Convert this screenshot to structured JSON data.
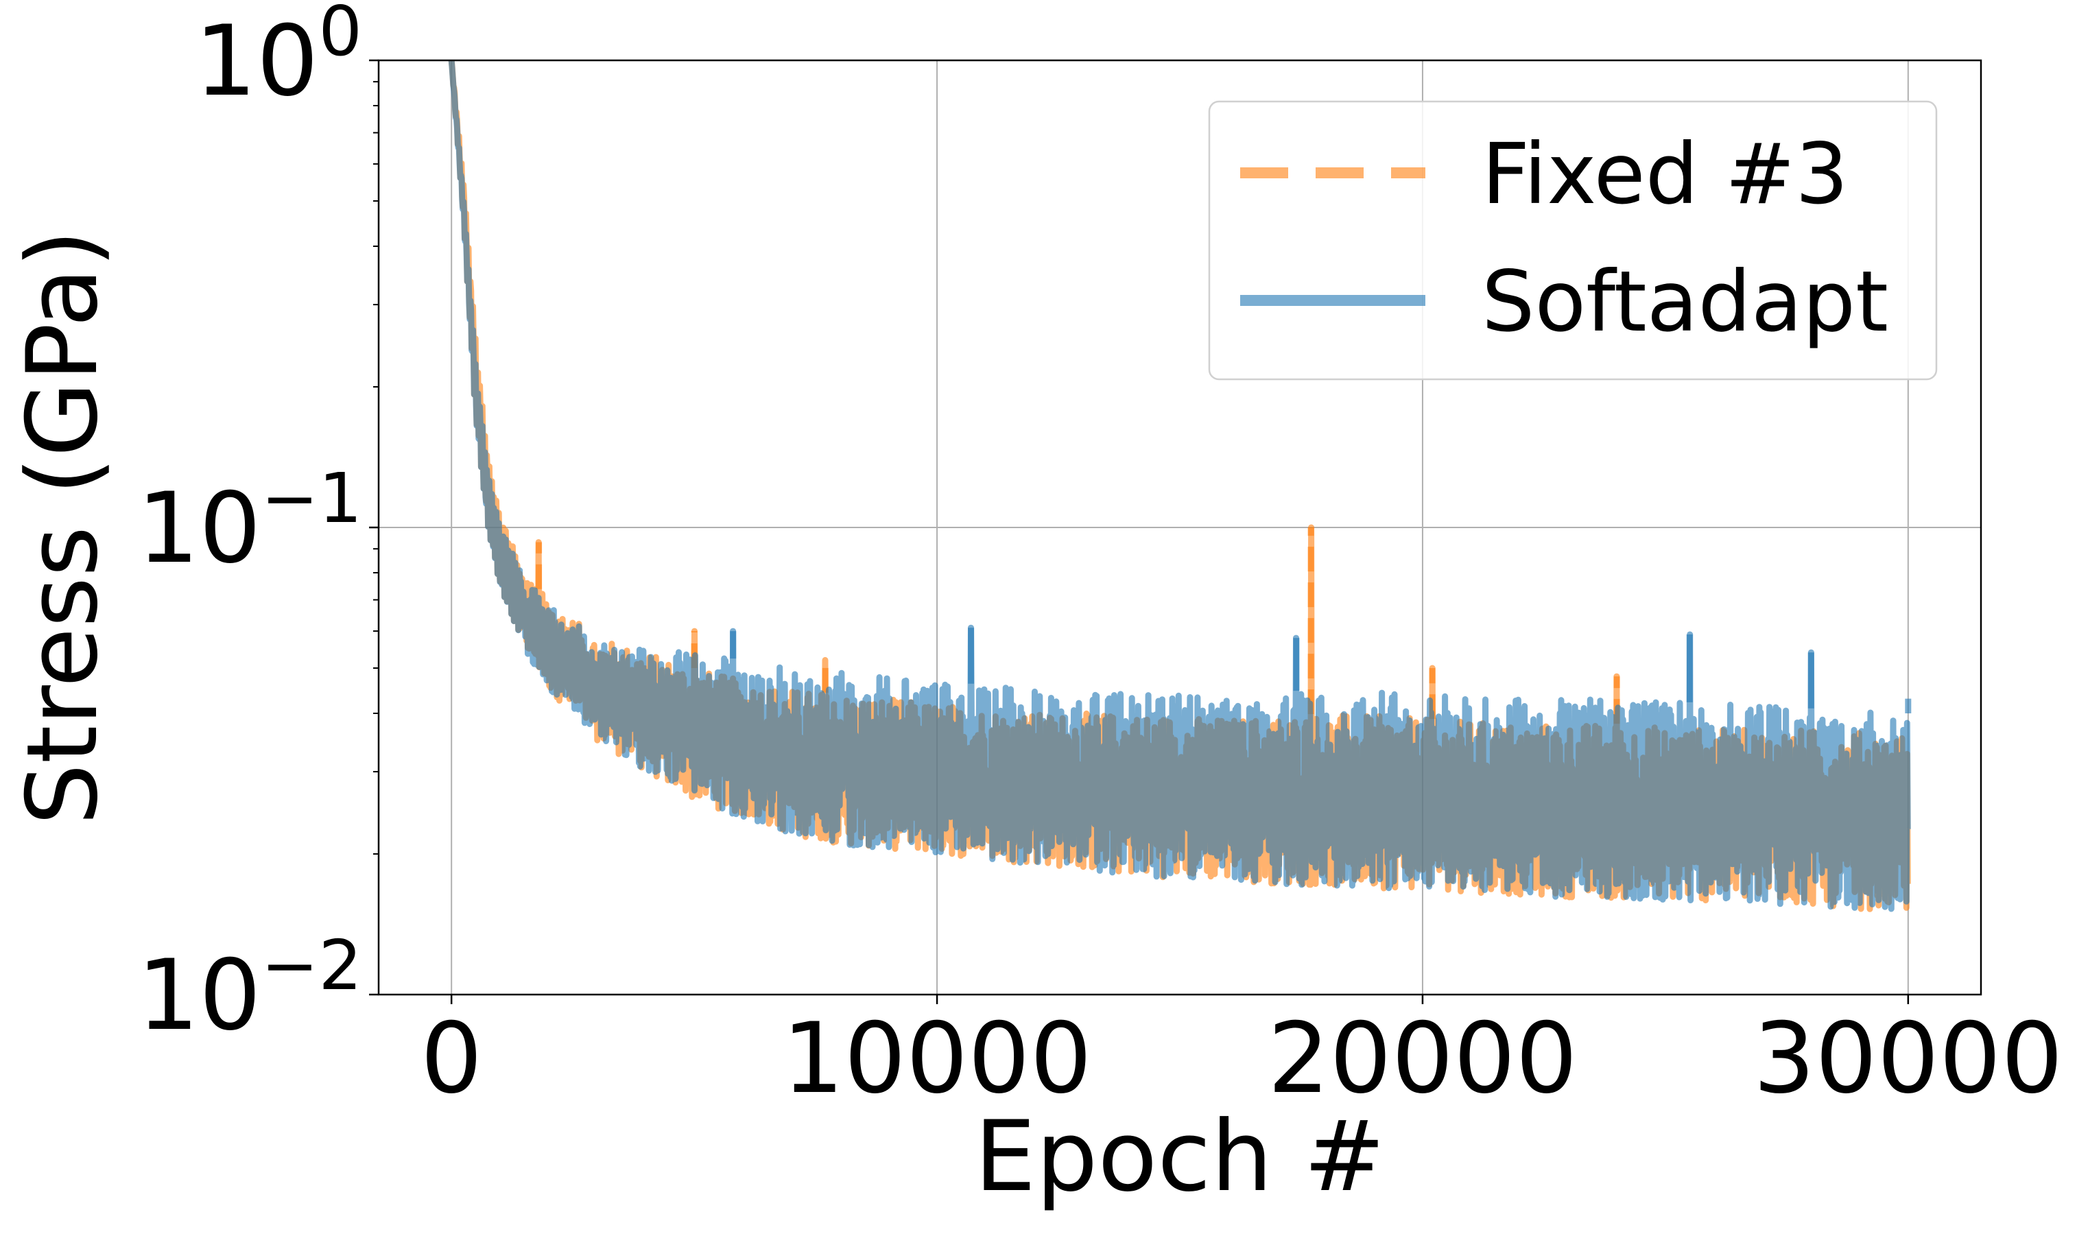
{
  "chart_data": {
    "type": "line",
    "title": "",
    "xlabel": "Epoch #",
    "ylabel": "Stress (GPa)",
    "xlim": [
      -1500,
      31500
    ],
    "ylim": [
      0.01,
      1
    ],
    "yscale": "log",
    "grid": true,
    "legend_position": "top-right",
    "x_ticks": [
      {
        "value": 0,
        "label": "0"
      },
      {
        "value": 10000,
        "label": "10000"
      },
      {
        "value": 20000,
        "label": "20000"
      },
      {
        "value": 30000,
        "label": "30000"
      }
    ],
    "y_ticks": [
      {
        "value": 1,
        "base": "10",
        "exp": "0"
      },
      {
        "value": 0.1,
        "base": "10",
        "exp": "−1"
      },
      {
        "value": 0.01,
        "base": "10",
        "exp": "−2"
      }
    ],
    "series": [
      {
        "name": "Fixed #3",
        "color": "#ff7f0e",
        "style": "dashed",
        "x": [
          0,
          250,
          500,
          750,
          1000,
          1500,
          2000,
          3000,
          4000,
          5000,
          6000,
          7000,
          8000,
          9000,
          10000,
          12000,
          14000,
          16000,
          18000,
          20000,
          22000,
          24000,
          26000,
          28000,
          30000
        ],
        "upper": [
          1.0,
          0.55,
          0.25,
          0.14,
          0.105,
          0.08,
          0.07,
          0.058,
          0.054,
          0.05,
          0.047,
          0.045,
          0.044,
          0.043,
          0.042,
          0.04,
          0.04,
          0.039,
          0.04,
          0.039,
          0.038,
          0.038,
          0.037,
          0.037,
          0.036
        ],
        "lower": [
          1.0,
          0.45,
          0.17,
          0.1,
          0.075,
          0.055,
          0.045,
          0.035,
          0.03,
          0.026,
          0.024,
          0.022,
          0.021,
          0.0205,
          0.02,
          0.019,
          0.018,
          0.0175,
          0.017,
          0.0168,
          0.0163,
          0.016,
          0.0158,
          0.0155,
          0.015
        ],
        "spikes": [
          {
            "x": 1800,
            "y": 0.093
          },
          {
            "x": 5000,
            "y": 0.06
          },
          {
            "x": 7700,
            "y": 0.052
          },
          {
            "x": 17700,
            "y": 0.1
          },
          {
            "x": 20200,
            "y": 0.05
          },
          {
            "x": 24000,
            "y": 0.048
          }
        ]
      },
      {
        "name": "Softadapt",
        "color": "#1f77b4",
        "style": "solid",
        "x": [
          0,
          250,
          500,
          750,
          1000,
          1500,
          2000,
          3000,
          4000,
          5000,
          6000,
          7000,
          8000,
          9000,
          10000,
          12000,
          14000,
          16000,
          18000,
          20000,
          22000,
          24000,
          26000,
          28000,
          30000
        ],
        "upper": [
          1.0,
          0.5,
          0.22,
          0.13,
          0.1,
          0.078,
          0.068,
          0.058,
          0.055,
          0.054,
          0.052,
          0.05,
          0.049,
          0.048,
          0.047,
          0.045,
          0.044,
          0.044,
          0.045,
          0.044,
          0.043,
          0.043,
          0.042,
          0.041,
          0.04
        ],
        "lower": [
          1.0,
          0.45,
          0.17,
          0.1,
          0.075,
          0.055,
          0.045,
          0.035,
          0.03,
          0.026,
          0.024,
          0.022,
          0.021,
          0.0205,
          0.02,
          0.019,
          0.018,
          0.0175,
          0.017,
          0.0168,
          0.0163,
          0.016,
          0.0158,
          0.0155,
          0.015
        ],
        "spikes": [
          {
            "x": 5800,
            "y": 0.06
          },
          {
            "x": 10700,
            "y": 0.061
          },
          {
            "x": 17400,
            "y": 0.058
          },
          {
            "x": 25500,
            "y": 0.059
          },
          {
            "x": 28000,
            "y": 0.054
          },
          {
            "x": 30000,
            "y": 0.043
          }
        ]
      }
    ]
  }
}
